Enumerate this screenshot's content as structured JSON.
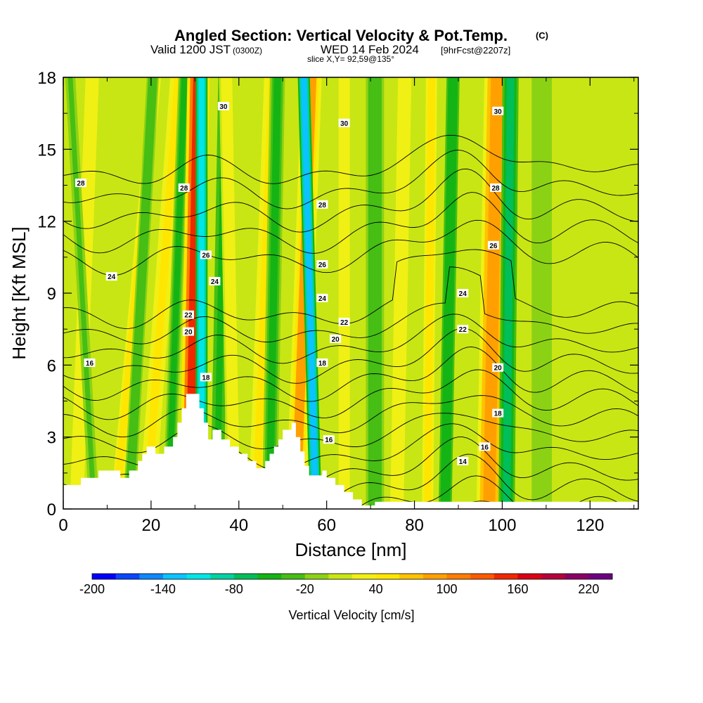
{
  "header": {
    "title": "Angled Section: Vertical Velocity & Pot.Temp.",
    "title_unit": "(C)",
    "valid_prefix": "Valid 1200 JST",
    "valid_utc": "(0300Z)",
    "valid_date": "WED 14 Feb 2024",
    "forecast_info": "[9hrFcst@2207z]",
    "slice_info": "slice X,Y= 92,59@135°"
  },
  "chart_data": {
    "type": "heatmap",
    "title": "Angled Section: Vertical Velocity & Pot.Temp.",
    "xlabel": "Distance [nm]",
    "ylabel": "Height [Kft MSL]",
    "xlim": [
      0,
      131
    ],
    "ylim": [
      0,
      18
    ],
    "x_ticks": [
      "0",
      "20",
      "40",
      "60",
      "80",
      "100",
      "120"
    ],
    "x_tick_values": [
      0,
      20,
      40,
      60,
      80,
      100,
      120
    ],
    "y_ticks": [
      "0",
      "3",
      "6",
      "9",
      "12",
      "15",
      "18"
    ],
    "y_tick_values": [
      0,
      3,
      6,
      9,
      12,
      15,
      18
    ],
    "colorbar": {
      "label": "Vertical Velocity [cm/s]",
      "min": -200,
      "max": 240,
      "step": 20,
      "tick_labels": [
        "-200",
        "-140",
        "-80",
        "-20",
        "40",
        "100",
        "160",
        "220"
      ],
      "tick_values": [
        -200,
        -140,
        -80,
        -20,
        40,
        100,
        160,
        220
      ],
      "colors": [
        "#0000ff",
        "#0a46ff",
        "#0f87ff",
        "#0bc3ff",
        "#00e6e6",
        "#00d2a0",
        "#00be5a",
        "#14b414",
        "#46be14",
        "#8cd214",
        "#c8e614",
        "#f0f014",
        "#ffe600",
        "#ffc300",
        "#ffa000",
        "#ff7d00",
        "#ff5a00",
        "#f02800",
        "#dc0014",
        "#b4003c",
        "#8c0064",
        "#6e0082"
      ]
    },
    "terrain": [
      [
        0,
        1.0
      ],
      [
        4,
        1.0
      ],
      [
        4,
        1.3
      ],
      [
        8,
        1.3
      ],
      [
        8,
        1.6
      ],
      [
        13,
        1.6
      ],
      [
        13,
        1.3
      ],
      [
        15,
        1.3
      ],
      [
        15,
        1.6
      ],
      [
        17,
        1.6
      ],
      [
        17,
        2.0
      ],
      [
        18,
        2.0
      ],
      [
        18,
        2.3
      ],
      [
        19,
        2.3
      ],
      [
        19,
        2.6
      ],
      [
        21,
        2.6
      ],
      [
        21,
        2.3
      ],
      [
        23,
        2.3
      ],
      [
        23,
        2.6
      ],
      [
        25,
        2.6
      ],
      [
        25,
        3.0
      ],
      [
        26,
        3.0
      ],
      [
        26,
        3.6
      ],
      [
        27,
        3.6
      ],
      [
        27,
        4.2
      ],
      [
        28,
        4.2
      ],
      [
        28,
        4.8
      ],
      [
        31,
        4.8
      ],
      [
        31,
        4.2
      ],
      [
        32,
        4.2
      ],
      [
        32,
        3.6
      ],
      [
        33,
        3.6
      ],
      [
        33,
        2.9
      ],
      [
        34,
        2.9
      ],
      [
        34,
        3.3
      ],
      [
        36,
        3.3
      ],
      [
        36,
        2.9
      ],
      [
        38,
        2.9
      ],
      [
        38,
        2.6
      ],
      [
        40,
        2.6
      ],
      [
        40,
        2.3
      ],
      [
        42,
        2.3
      ],
      [
        42,
        2.0
      ],
      [
        44,
        2.0
      ],
      [
        44,
        1.7
      ],
      [
        46,
        1.7
      ],
      [
        46,
        2.0
      ],
      [
        47,
        2.0
      ],
      [
        47,
        2.3
      ],
      [
        48,
        2.3
      ],
      [
        48,
        2.6
      ],
      [
        49,
        2.6
      ],
      [
        49,
        2.9
      ],
      [
        50,
        2.9
      ],
      [
        50,
        3.3
      ],
      [
        52,
        3.3
      ],
      [
        52,
        3.6
      ],
      [
        53,
        3.6
      ],
      [
        53,
        3.0
      ],
      [
        54,
        3.0
      ],
      [
        54,
        2.4
      ],
      [
        55,
        2.4
      ],
      [
        55,
        1.8
      ],
      [
        56,
        1.8
      ],
      [
        56,
        1.4
      ],
      [
        59,
        1.4
      ],
      [
        59,
        1.6
      ],
      [
        60,
        1.6
      ],
      [
        60,
        1.3
      ],
      [
        62,
        1.3
      ],
      [
        62,
        1.0
      ],
      [
        64,
        1.0
      ],
      [
        64,
        0.7
      ],
      [
        66,
        0.7
      ],
      [
        66,
        0.4
      ],
      [
        68,
        0.4
      ],
      [
        68,
        0.15
      ],
      [
        71,
        0.15
      ],
      [
        71,
        0.3
      ],
      [
        131,
        0.3
      ]
    ],
    "updraft_bands": [
      {
        "x_base": 3,
        "lean": 0.2,
        "width": 1.8,
        "velocity": 45
      },
      {
        "x_base": 7,
        "lean": -0.3,
        "width": 1.0,
        "velocity": -30
      },
      {
        "x_base": 12,
        "lean": 0.5,
        "width": 1.5,
        "velocity": 50
      },
      {
        "x_base": 15,
        "lean": 0.3,
        "width": 1.2,
        "velocity": -45
      },
      {
        "x_base": 19,
        "lean": 0.4,
        "width": 1.6,
        "velocity": 60
      },
      {
        "x_base": 24,
        "lean": 0.2,
        "width": 1.2,
        "velocity": -50
      },
      {
        "x_base": 29,
        "lean": 0.1,
        "width": 2.2,
        "velocity": 170
      },
      {
        "x_base": 31.5,
        "lean": 0.0,
        "width": 1.2,
        "velocity": -140
      },
      {
        "x_base": 35,
        "lean": 0.1,
        "width": 1.3,
        "velocity": -60
      },
      {
        "x_base": 39,
        "lean": -0.1,
        "width": 1.5,
        "velocity": 40
      },
      {
        "x_base": 44,
        "lean": 0.2,
        "width": 1.6,
        "velocity": 60
      },
      {
        "x_base": 47,
        "lean": 0.1,
        "width": 1.5,
        "velocity": -55
      },
      {
        "x_base": 53,
        "lean": 0.2,
        "width": 2.0,
        "velocity": 95
      },
      {
        "x_base": 57.5,
        "lean": -0.15,
        "width": 1.2,
        "velocity": -155
      },
      {
        "x_base": 64,
        "lean": 0.0,
        "width": 1.5,
        "velocity": 45
      },
      {
        "x_base": 71,
        "lean": 0.0,
        "width": 1.8,
        "velocity": -40
      },
      {
        "x_base": 76,
        "lean": 0.1,
        "width": 1.8,
        "velocity": 40
      },
      {
        "x_base": 83,
        "lean": 0.05,
        "width": 1.5,
        "velocity": 50
      },
      {
        "x_base": 87,
        "lean": 0.1,
        "width": 1.3,
        "velocity": -70
      },
      {
        "x_base": 97,
        "lean": 0.1,
        "width": 2.5,
        "velocity": 110
      },
      {
        "x_base": 101,
        "lean": 0.05,
        "width": 1.6,
        "velocity": -75
      },
      {
        "x_base": 109,
        "lean": 0.0,
        "width": 2.0,
        "velocity": -20
      },
      {
        "x_base": 117,
        "lean": 0.0,
        "width": 2.2,
        "velocity": 15
      },
      {
        "x_base": 126,
        "lean": 0.0,
        "width": 2.5,
        "velocity": 20
      }
    ],
    "isentropes": {
      "levels": [
        13,
        14,
        15,
        16,
        17,
        18,
        19,
        20,
        21,
        22,
        23,
        24,
        25,
        26,
        27,
        28,
        29,
        30,
        31
      ],
      "labels": [
        {
          "text": "16",
          "x": 6,
          "y": 6.1
        },
        {
          "text": "24",
          "x": 11,
          "y": 9.7
        },
        {
          "text": "28",
          "x": 4,
          "y": 13.6
        },
        {
          "text": "28",
          "x": 27.5,
          "y": 13.4
        },
        {
          "text": "30",
          "x": 36.5,
          "y": 16.8
        },
        {
          "text": "26",
          "x": 32.5,
          "y": 10.6
        },
        {
          "text": "24",
          "x": 34.5,
          "y": 9.5
        },
        {
          "text": "22",
          "x": 28.5,
          "y": 8.1
        },
        {
          "text": "20",
          "x": 28.5,
          "y": 7.4
        },
        {
          "text": "18",
          "x": 32.5,
          "y": 5.5
        },
        {
          "text": "30",
          "x": 64,
          "y": 16.1
        },
        {
          "text": "28",
          "x": 59,
          "y": 12.7
        },
        {
          "text": "26",
          "x": 59,
          "y": 10.2
        },
        {
          "text": "24",
          "x": 59,
          "y": 8.8
        },
        {
          "text": "22",
          "x": 64,
          "y": 7.8
        },
        {
          "text": "20",
          "x": 62,
          "y": 7.1
        },
        {
          "text": "18",
          "x": 59,
          "y": 6.1
        },
        {
          "text": "16",
          "x": 60.5,
          "y": 2.9
        },
        {
          "text": "30",
          "x": 99,
          "y": 16.6
        },
        {
          "text": "28",
          "x": 98.5,
          "y": 13.4
        },
        {
          "text": "26",
          "x": 98,
          "y": 11.0
        },
        {
          "text": "24",
          "x": 91,
          "y": 9.0
        },
        {
          "text": "22",
          "x": 91,
          "y": 7.5
        },
        {
          "text": "20",
          "x": 99,
          "y": 5.9
        },
        {
          "text": "18",
          "x": 99,
          "y": 4.0
        },
        {
          "text": "16",
          "x": 96,
          "y": 2.6
        },
        {
          "text": "14",
          "x": 91,
          "y": 2.0
        }
      ]
    }
  }
}
